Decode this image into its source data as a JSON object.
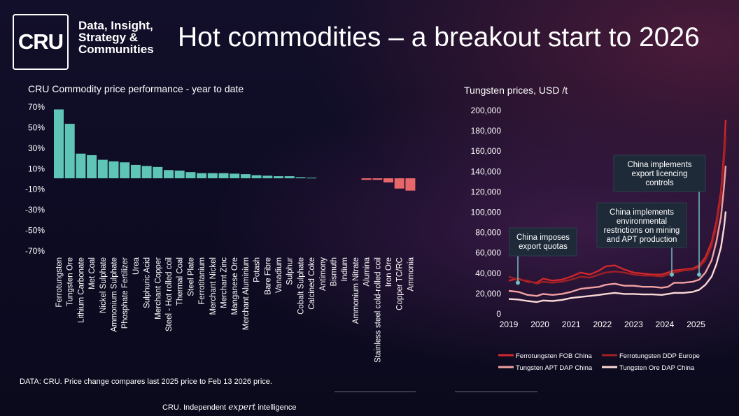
{
  "brand": {
    "logo_text": "CRU",
    "tagline": [
      "Data, Insight,",
      "Strategy &",
      "Communities"
    ]
  },
  "page_title": "Hot commodities – a breakout start to 2026",
  "source_note": "DATA: CRU. Price change compares last 2025 price to Feb 13 2026 price.",
  "footer": {
    "prefix": "CRU. Independent",
    "italic": "expert",
    "suffix": "intelligence"
  },
  "colors": {
    "positive": "#5fc6b7",
    "negative": "#e8676a",
    "ferro_fob": "#d0272b",
    "ferro_ddp": "#9e1f24",
    "apt": "#f2a0a2",
    "ore": "#fad9d6",
    "annotation_bg": "#1e2a38",
    "annotation_line": "#6fc1c1"
  },
  "chart_data": [
    {
      "type": "bar",
      "title": "CRU Commodity price performance - year to date",
      "ylim": [
        -70,
        70
      ],
      "yticks": [
        "70%",
        "50%",
        "30%",
        "10%",
        "-10%",
        "-30%",
        "-50%",
        "-70%"
      ],
      "ytick_values": [
        70,
        50,
        30,
        10,
        -10,
        -30,
        -50,
        -70
      ],
      "categories": [
        "Ferrotungsten",
        "Tungsten Ore",
        "Lithium Carbonate",
        "Met Coal",
        "Nickel Sulphate",
        "Ammonium Sulphate",
        "Phosphate Fertilizer",
        "Urea",
        "Sulphuric Acid",
        "Merchant Copper",
        "Steel - Hot rolled coil",
        "Thermal Coal",
        "Steel Plate",
        "Ferrotitanium",
        "Merchant Nickel",
        "Merchant Zinc",
        "Manganese Ore",
        "Merchant Aluminium",
        "Potash",
        "Bare Fibre",
        "Vanadium",
        "Sulphur",
        "Cobalt Sulphate",
        "Calcined Coke",
        "Antimony",
        "Bismuth",
        "Indium",
        "Ammonium Nitrate",
        "Alumina",
        "Stainless steel cold-rolled coil",
        "Iron Ore",
        "Copper TC/RC",
        "Ammonia"
      ],
      "values": [
        67,
        53,
        24,
        22.5,
        18,
        16.5,
        15.5,
        13,
        12,
        11,
        8,
        7.5,
        6,
        5,
        5,
        5,
        4.5,
        4,
        3,
        2.5,
        2,
        2,
        1,
        0.6,
        0,
        0,
        0,
        0,
        -1.5,
        -1.5,
        -4,
        -10,
        -12
      ]
    },
    {
      "type": "line",
      "title": "Tungsten prices, USD /t",
      "ylim": [
        0,
        200000
      ],
      "yticks": [
        "200,000",
        "180,000",
        "160,000",
        "140,000",
        "120,000",
        "100,000",
        "80,000",
        "60,000",
        "40,000",
        "20,000",
        "0"
      ],
      "ytick_values": [
        200000,
        180000,
        160000,
        140000,
        120000,
        100000,
        80000,
        60000,
        40000,
        20000,
        0
      ],
      "xlim": [
        2019,
        2025.95
      ],
      "xticks": [
        "2019",
        "2020",
        "2021",
        "2022",
        "2023",
        "2024",
        "2025"
      ],
      "xtick_values": [
        2019,
        2020,
        2021,
        2022,
        2023,
        2024,
        2025
      ],
      "legend": [
        "Ferrotungsten FOB China",
        "Ferrotungsten DDP Europe",
        "Tungsten APT DAP China",
        "Tungsten Ore DAP China"
      ],
      "legend_position": "bottom",
      "series": [
        {
          "name": "Ferrotungsten FOB China",
          "x": [
            2019,
            2019.3,
            2019.6,
            2019.9,
            2020.1,
            2020.4,
            2020.7,
            2021,
            2021.3,
            2021.6,
            2021.9,
            2022.1,
            2022.4,
            2022.7,
            2023,
            2023.3,
            2023.6,
            2023.9,
            2024.1,
            2024.3,
            2024.6,
            2024.9,
            2025.1,
            2025.3,
            2025.5,
            2025.65,
            2025.8,
            2025.9,
            2025.95
          ],
          "y": [
            32000,
            34000,
            31000,
            30000,
            34000,
            32000,
            33000,
            36000,
            40000,
            38000,
            42000,
            46000,
            47000,
            43000,
            40000,
            39000,
            38000,
            38000,
            40000,
            42000,
            43000,
            44000,
            47000,
            55000,
            70000,
            90000,
            120000,
            160000,
            190000
          ]
        },
        {
          "name": "Ferrotungsten DDP Europe",
          "x": [
            2019,
            2019.3,
            2019.6,
            2019.9,
            2020.1,
            2020.4,
            2020.7,
            2021,
            2021.3,
            2021.6,
            2021.9,
            2022.1,
            2022.4,
            2022.7,
            2023,
            2023.3,
            2023.6,
            2023.9,
            2024.1,
            2024.3,
            2024.6,
            2024.9,
            2025.1,
            2025.3,
            2025.5,
            2025.65,
            2025.8,
            2025.9,
            2025.95
          ],
          "y": [
            36000,
            33000,
            32000,
            29000,
            31000,
            30000,
            31000,
            33000,
            36000,
            35000,
            38000,
            40000,
            41000,
            40000,
            38000,
            37000,
            37000,
            36000,
            38000,
            40000,
            42000,
            43000,
            45000,
            52000,
            66000,
            85000,
            115000,
            150000,
            175000
          ]
        },
        {
          "name": "Tungsten APT DAP China",
          "x": [
            2019,
            2019.3,
            2019.6,
            2019.9,
            2020.1,
            2020.4,
            2020.7,
            2021,
            2021.3,
            2021.6,
            2021.9,
            2022.1,
            2022.4,
            2022.7,
            2023,
            2023.3,
            2023.6,
            2023.9,
            2024.1,
            2024.3,
            2024.6,
            2024.9,
            2025.1,
            2025.3,
            2025.5,
            2025.65,
            2025.8,
            2025.9,
            2025.95
          ],
          "y": [
            22000,
            21000,
            18000,
            17000,
            19000,
            18000,
            19000,
            21000,
            24000,
            25000,
            26000,
            28000,
            29000,
            27000,
            27000,
            26000,
            26000,
            25000,
            26000,
            30000,
            30000,
            31000,
            33000,
            40000,
            52000,
            70000,
            95000,
            125000,
            145000
          ]
        },
        {
          "name": "Tungsten Ore DAP China",
          "x": [
            2019,
            2019.3,
            2019.6,
            2019.9,
            2020.1,
            2020.4,
            2020.7,
            2021,
            2021.3,
            2021.6,
            2021.9,
            2022.1,
            2022.4,
            2022.7,
            2023,
            2023.3,
            2023.6,
            2023.9,
            2024.1,
            2024.3,
            2024.6,
            2024.9,
            2025.1,
            2025.3,
            2025.5,
            2025.65,
            2025.8,
            2025.9,
            2025.95
          ],
          "y": [
            14000,
            13500,
            12000,
            11000,
            12500,
            12000,
            13000,
            15000,
            16000,
            17000,
            18000,
            19000,
            20000,
            19000,
            19000,
            18500,
            18500,
            18000,
            19000,
            20000,
            20000,
            21000,
            23000,
            28000,
            36000,
            48000,
            65000,
            85000,
            100000
          ]
        }
      ],
      "annotations": [
        {
          "text": [
            "China imposes",
            "export quotas"
          ],
          "x": 2019.4,
          "y": 30000
        },
        {
          "text": [
            "China implements",
            "environmental",
            "restrictions on mining",
            "and APT production"
          ],
          "x": 2024.25,
          "y": 38000
        },
        {
          "text": [
            "China implements",
            "export licencing",
            "controls"
          ],
          "x": 2025.12,
          "y": 38000
        }
      ]
    }
  ]
}
